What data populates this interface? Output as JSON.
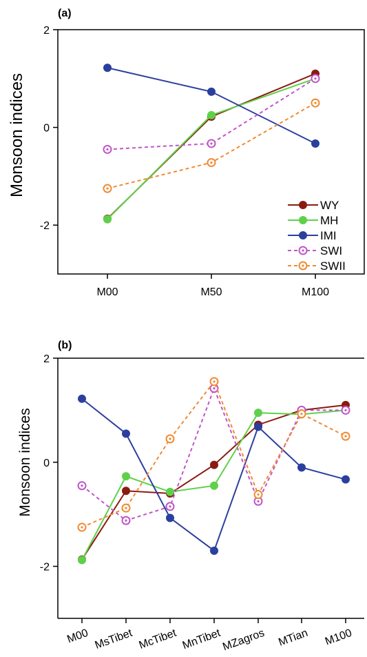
{
  "chart_data": [
    {
      "type": "line",
      "panel_label": "(a)",
      "ylabel": "Monsoon indices",
      "xlabel": "",
      "ylim": [
        -3,
        2
      ],
      "yticks": [
        2,
        0,
        -2
      ],
      "ytick_labels": [
        "2",
        "0",
        "-2"
      ],
      "categories": [
        "M00",
        "M50",
        "M100"
      ],
      "grid": false,
      "legend_position": "bottom-right",
      "series": [
        {
          "name": "WY",
          "color": "#8b1a10",
          "style": "solid",
          "marker": "filled",
          "values": [
            -1.87,
            0.22,
            1.1
          ]
        },
        {
          "name": "MH",
          "color": "#5fd04a",
          "style": "solid",
          "marker": "filled",
          "values": [
            -1.88,
            0.25,
            1.0
          ]
        },
        {
          "name": "IMI",
          "color": "#2b3f9e",
          "style": "solid",
          "marker": "filled",
          "values": [
            1.22,
            0.73,
            -0.33
          ]
        },
        {
          "name": "SWI",
          "color": "#c055c8",
          "style": "dashed",
          "marker": "ring",
          "values": [
            -0.45,
            -0.33,
            1.0
          ]
        },
        {
          "name": "SWII",
          "color": "#f08a30",
          "style": "dashed",
          "marker": "ring",
          "values": [
            -1.25,
            -0.72,
            0.5
          ]
        }
      ]
    },
    {
      "type": "line",
      "panel_label": "(b)",
      "ylabel": "Monsoon indices",
      "xlabel": "",
      "ylim": [
        -3,
        2
      ],
      "yticks": [
        2,
        0,
        -2
      ],
      "ytick_labels": [
        "2",
        "0",
        "-2"
      ],
      "categories": [
        "M00",
        "MsTibet",
        "McTibet",
        "MnTibet",
        "MZagros",
        "MTian",
        "M100"
      ],
      "grid": false,
      "series": [
        {
          "name": "WY",
          "color": "#8b1a10",
          "style": "solid",
          "marker": "filled",
          "values": [
            -1.87,
            -0.55,
            -0.6,
            -0.05,
            0.72,
            1.0,
            1.1
          ]
        },
        {
          "name": "MH",
          "color": "#5fd04a",
          "style": "solid",
          "marker": "filled",
          "values": [
            -1.88,
            -0.27,
            -0.57,
            -0.45,
            0.95,
            0.92,
            1.0
          ]
        },
        {
          "name": "IMI",
          "color": "#2b3f9e",
          "style": "solid",
          "marker": "filled",
          "values": [
            1.22,
            0.55,
            -1.07,
            -1.7,
            0.68,
            -0.1,
            -0.33
          ]
        },
        {
          "name": "SWI",
          "color": "#c055c8",
          "style": "dashed",
          "marker": "ring",
          "values": [
            -0.45,
            -1.12,
            -0.85,
            1.42,
            -0.75,
            1.0,
            1.0
          ]
        },
        {
          "name": "SWII",
          "color": "#f08a30",
          "style": "dashed",
          "marker": "ring",
          "values": [
            -1.25,
            -0.88,
            0.45,
            1.55,
            -0.62,
            0.93,
            0.5
          ]
        }
      ]
    }
  ]
}
